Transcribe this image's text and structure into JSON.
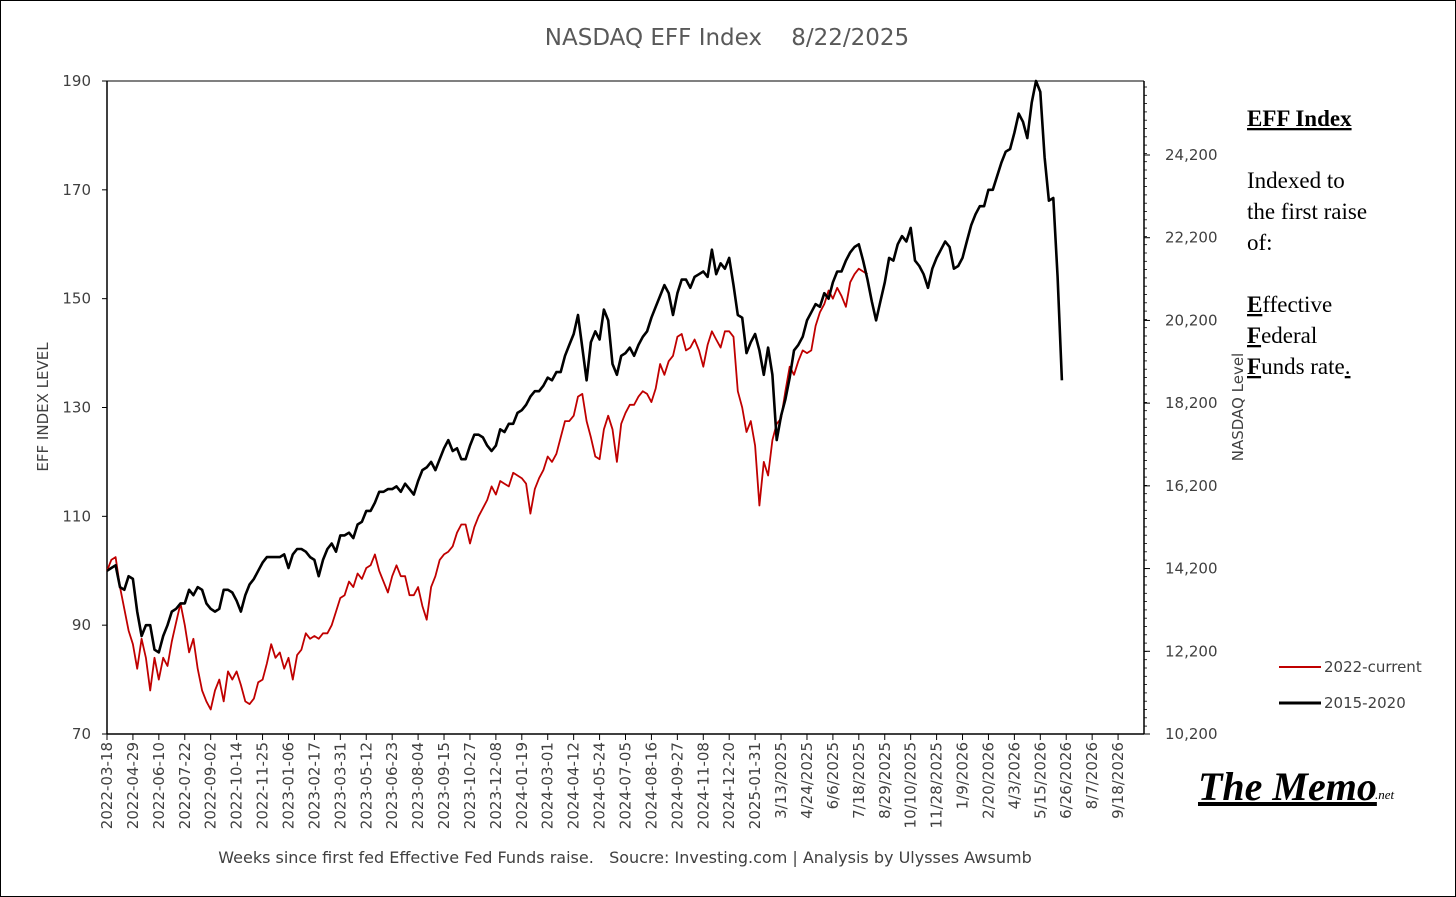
{
  "chart_data": {
    "type": "line",
    "title": "NASDAQ EFF Index    8/22/2025",
    "xlabel": "Weeks since first fed Effective Fed Funds raise.   Soucre: Investing.com | Analysis by Ulysses Awsumb",
    "ylabel": "EFF INDEX LEVEL",
    "y2label": "NASDAQ Level",
    "ylim": [
      70,
      190
    ],
    "yticks": [
      "190",
      "170",
      "150",
      "130",
      "110",
      "90",
      "70"
    ],
    "y2ticks": [
      "24,200",
      "22,200",
      "20,200",
      "18,200",
      "16,200",
      "14,200",
      "12,200",
      "10,200"
    ],
    "xticks": [
      "2022-03-18",
      "2022-04-29",
      "2022-06-10",
      "2022-07-22",
      "2022-09-02",
      "2022-10-14",
      "2022-11-25",
      "2023-01-06",
      "2023-02-17",
      "2023-03-31",
      "2023-05-12",
      "2023-06-23",
      "2023-08-04",
      "2023-09-15",
      "2023-10-27",
      "2023-12-08",
      "2024-01-19",
      "2024-03-01",
      "2024-04-12",
      "2024-05-24",
      "2024-07-05",
      "2024-08-16",
      "2024-09-27",
      "2024-11-08",
      "2024-12-20",
      "2025-01-31",
      "3/13/2025",
      "4/24/2025",
      "6/6/2025",
      "7/18/2025",
      "8/29/2025",
      "10/10/2025",
      "11/28/2025",
      "1/9/2026",
      "2/20/2026",
      "4/3/2026",
      "5/15/2026",
      "6/26/2026",
      "8/7/2026",
      "9/18/2026"
    ],
    "legend_position": "bottom-right",
    "grid": false,
    "series": [
      {
        "name": "2022-current",
        "color": "#C00000",
        "start_week": 0,
        "values": [
          100.0,
          102.0,
          102.5,
          97.0,
          93.0,
          89.0,
          86.5,
          82.0,
          87.5,
          84.0,
          78.0,
          84.0,
          80.0,
          84.0,
          82.5,
          87.0,
          90.5,
          94.0,
          90.0,
          85.0,
          87.5,
          82.0,
          78.0,
          76.0,
          74.5,
          78.0,
          80.0,
          76.0,
          81.5,
          80.0,
          81.5,
          79.0,
          76.0,
          75.5,
          76.5,
          79.5,
          80.0,
          83.0,
          86.5,
          84.0,
          85.0,
          82.0,
          84.0,
          80.0,
          84.5,
          85.5,
          88.5,
          87.5,
          88.0,
          87.5,
          88.5,
          88.5,
          90.0,
          92.5,
          95.0,
          95.5,
          98.0,
          97.0,
          99.5,
          98.5,
          100.5,
          101.0,
          103.0,
          100.0,
          98.0,
          96.0,
          99.0,
          101.0,
          99.0,
          99.0,
          95.5,
          95.5,
          97.0,
          93.5,
          91.0,
          97.0,
          99.0,
          102.0,
          103.0,
          103.5,
          104.5,
          107.0,
          108.5,
          108.5,
          105.0,
          108.0,
          110.0,
          111.5,
          113.0,
          115.5,
          114.0,
          116.5,
          116.0,
          115.5,
          118.0,
          117.5,
          117.0,
          116.0,
          110.5,
          115.0,
          117.0,
          118.5,
          121.0,
          120.0,
          121.5,
          124.5,
          127.5,
          127.5,
          128.5,
          132.0,
          132.5,
          127.5,
          124.5,
          121.0,
          120.5,
          126.0,
          128.5,
          126.0,
          120.0,
          127.0,
          129.0,
          130.5,
          130.5,
          132.0,
          133.0,
          132.5,
          131.0,
          133.5,
          138.0,
          136.0,
          138.5,
          139.5,
          143.0,
          143.5,
          140.5,
          141.0,
          142.5,
          140.5,
          137.5,
          141.5,
          144.0,
          142.5,
          141.0,
          144.0,
          144.0,
          143.0,
          133.0,
          130.0,
          125.5,
          127.5,
          123.0,
          112.0,
          120.0,
          117.5,
          124.0,
          127.0,
          128.0,
          133.0,
          137.5,
          136.0,
          138.5,
          140.5,
          140.0,
          140.5,
          145.0,
          147.5,
          149.0,
          151.5,
          150.0,
          152.0,
          150.5,
          148.5,
          153.0,
          154.5,
          155.5,
          155.0,
          154.5
        ]
      },
      {
        "name": "2015-2020",
        "color": "#000000",
        "start_week": 0,
        "values": [
          100.0,
          100.5,
          101.0,
          97.0,
          96.5,
          99.0,
          98.5,
          92.5,
          88.0,
          90.0,
          90.0,
          85.5,
          85.0,
          88.0,
          90.0,
          92.5,
          93.0,
          94.0,
          94.0,
          96.5,
          95.5,
          97.0,
          96.5,
          94.0,
          93.0,
          92.5,
          93.0,
          96.5,
          96.5,
          96.0,
          94.5,
          92.5,
          95.5,
          97.5,
          98.5,
          100.0,
          101.5,
          102.5,
          102.5,
          102.5,
          102.5,
          103.0,
          100.5,
          103.0,
          104.0,
          104.0,
          103.5,
          102.5,
          102.0,
          99.0,
          102.0,
          104.0,
          105.0,
          103.5,
          106.5,
          106.5,
          107.0,
          106.0,
          108.5,
          109.0,
          111.0,
          111.0,
          112.5,
          114.5,
          114.5,
          115.0,
          115.0,
          115.5,
          114.5,
          116.0,
          115.0,
          114.0,
          116.5,
          118.5,
          119.0,
          120.0,
          118.5,
          120.5,
          122.5,
          124.0,
          122.0,
          122.5,
          120.5,
          120.5,
          123.0,
          125.0,
          125.0,
          124.5,
          123.0,
          122.0,
          123.0,
          126.0,
          125.5,
          127.0,
          127.0,
          129.0,
          129.5,
          130.5,
          132.0,
          133.0,
          133.0,
          134.0,
          135.5,
          135.0,
          136.5,
          136.5,
          139.5,
          141.5,
          143.5,
          147.0,
          141.0,
          135.0,
          142.0,
          144.0,
          142.5,
          148.0,
          146.0,
          138.0,
          136.0,
          139.5,
          140.0,
          141.0,
          139.5,
          141.5,
          143.0,
          144.0,
          146.5,
          148.5,
          150.5,
          152.5,
          151.0,
          147.0,
          151.0,
          153.5,
          153.5,
          152.0,
          154.0,
          154.5,
          155.0,
          154.0,
          159.0,
          154.5,
          156.5,
          155.5,
          157.5,
          152.5,
          147.0,
          146.5,
          140.0,
          142.0,
          143.5,
          140.5,
          136.0,
          141.0,
          136.0,
          124.0,
          128.5,
          131.5,
          135.5,
          140.5,
          141.5,
          143.0,
          146.0,
          147.5,
          149.0,
          148.5,
          151.0,
          150.0,
          153.0,
          155.0,
          155.0,
          157.0,
          158.5,
          159.5,
          160.0,
          157.0,
          153.5,
          149.5,
          146.0,
          149.5,
          153.0,
          157.5,
          157.0,
          160.0,
          161.5,
          160.5,
          163.0,
          157.0,
          156.0,
          154.5,
          152.0,
          155.5,
          157.5,
          159.0,
          160.5,
          159.5,
          155.5,
          156.0,
          157.5,
          160.5,
          163.5,
          165.5,
          167.0,
          167.0,
          170.0,
          170.0,
          172.5,
          175.0,
          177.0,
          177.5,
          180.5,
          184.0,
          182.5,
          179.5,
          186.0,
          190.0,
          188.0,
          176.0,
          168.0,
          168.5,
          154.0,
          135.0
        ]
      }
    ]
  },
  "annotation": {
    "heading": "EFF Index",
    "lines": [
      "Indexed to",
      "the first raise",
      "of:"
    ],
    "acronym": [
      {
        "initial": "E",
        "rest": "ffective"
      },
      {
        "initial": "F",
        "rest": "ederal"
      },
      {
        "initial": "F",
        "rest": "unds rate",
        "trail": "."
      }
    ]
  },
  "brand": {
    "name": "The Memo",
    "suffix": ".net"
  }
}
